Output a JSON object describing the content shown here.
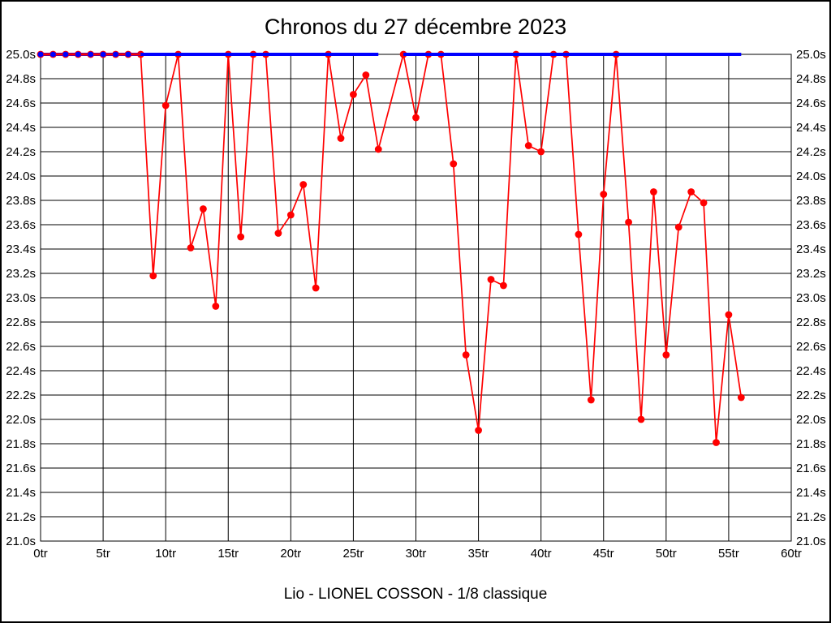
{
  "title": "Chronos du 27 décembre 2023",
  "caption": "Lio - LIONEL COSSON - 1/8 classique",
  "colors": {
    "series": "#ff0000",
    "reference": "#0000ff",
    "grid": "#000000",
    "text": "#000000",
    "background": "#ffffff"
  },
  "chart_data": {
    "type": "line",
    "title": "Chronos du 27 décembre 2023",
    "caption": "Lio - LIONEL COSSON - 1/8 classique",
    "x_unit": "tr",
    "y_unit": "s",
    "xlim": [
      0,
      60
    ],
    "ylim": [
      21.0,
      25.0
    ],
    "grid": true,
    "legend": "none",
    "x_tick_values": [
      0,
      5,
      10,
      15,
      20,
      25,
      30,
      35,
      40,
      45,
      50,
      55,
      60
    ],
    "x_tick_labels": [
      "0tr",
      "5tr",
      "10tr",
      "15tr",
      "20tr",
      "25tr",
      "30tr",
      "35tr",
      "40tr",
      "45tr",
      "50tr",
      "55tr",
      "60tr"
    ],
    "y_tick_values": [
      25.0,
      24.8,
      24.6,
      24.4,
      24.2,
      24.0,
      23.8,
      23.6,
      23.4,
      23.2,
      23.0,
      22.8,
      22.6,
      22.4,
      22.2,
      22.0,
      21.8,
      21.6,
      21.4,
      21.2,
      21.0
    ],
    "y_tick_labels": [
      "25.0s",
      "24.8s",
      "24.6s",
      "24.4s",
      "24.2s",
      "24.0s",
      "23.8s",
      "23.6s",
      "23.4s",
      "23.2s",
      "23.0s",
      "22.8s",
      "22.6s",
      "22.4s",
      "22.2s",
      "22.0s",
      "21.8s",
      "21.6s",
      "21.4s",
      "21.2s",
      "21.0s"
    ],
    "y_axis_sides": [
      "left",
      "right"
    ],
    "series": [
      {
        "name": "lap-times",
        "color": "#ff0000",
        "marker": "circle",
        "missing_laps": [
          28
        ],
        "x": [
          0,
          1,
          2,
          3,
          4,
          5,
          6,
          7,
          8,
          9,
          10,
          11,
          12,
          13,
          14,
          15,
          16,
          17,
          18,
          19,
          20,
          21,
          22,
          23,
          24,
          25,
          26,
          27,
          29,
          30,
          31,
          32,
          33,
          34,
          35,
          36,
          37,
          38,
          39,
          40,
          41,
          42,
          43,
          44,
          45,
          46,
          47,
          48,
          49,
          50,
          51,
          52,
          53,
          54,
          55,
          56
        ],
        "y": [
          25.0,
          25.0,
          25.0,
          25.0,
          25.0,
          25.0,
          25.0,
          25.0,
          25.0,
          23.18,
          24.58,
          25.0,
          23.41,
          23.73,
          22.93,
          25.0,
          23.5,
          25.0,
          25.0,
          23.53,
          23.68,
          23.93,
          23.08,
          25.0,
          24.31,
          24.67,
          24.83,
          24.22,
          25.0,
          24.48,
          25.0,
          25.0,
          24.1,
          22.53,
          21.91,
          23.15,
          23.1,
          25.0,
          24.25,
          24.2,
          25.0,
          25.0,
          23.52,
          22.16,
          23.85,
          25.0,
          23.62,
          22.0,
          23.87,
          22.53,
          23.58,
          23.87,
          23.78,
          21.81,
          22.86,
          22.18
        ]
      },
      {
        "name": "reference-25s",
        "color": "#0000ff",
        "value": 25.0,
        "x_segments": [
          [
            0,
            27
          ],
          [
            29,
            56
          ]
        ],
        "marker_x": [
          0,
          1,
          2,
          3,
          4,
          5,
          6,
          7
        ],
        "red_overlay_segment": [
          0,
          8
        ]
      }
    ]
  }
}
